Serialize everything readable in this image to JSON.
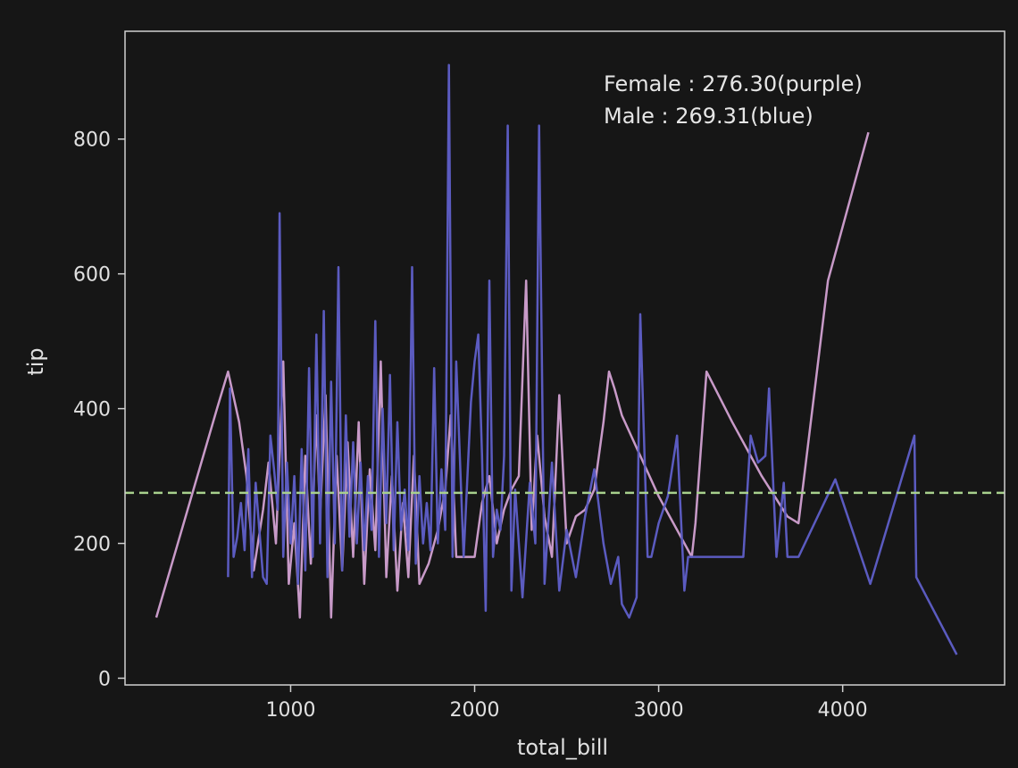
{
  "chart_data": {
    "type": "line",
    "title": "",
    "xlabel": "total_bill",
    "ylabel": "tip",
    "xlim": [
      100,
      4880
    ],
    "ylim": [
      -10,
      960
    ],
    "x_ticks": [
      1000,
      2000,
      3000,
      4000
    ],
    "y_ticks": [
      0,
      200,
      400,
      600,
      800
    ],
    "grid": false,
    "background": "#161616",
    "axes_color": "#d0d0d0",
    "annotations": [
      "Female : 276.30(purple)",
      "Male : 269.31(blue)"
    ],
    "hline": {
      "y": 275,
      "color": "#a8d08d",
      "style": "dashed"
    },
    "series": [
      {
        "color": "#c89ac8",
        "x": [
          270,
          600,
          660,
          720,
          760,
          800,
          850,
          880,
          920,
          960,
          990,
          1020,
          1050,
          1080,
          1110,
          1140,
          1160,
          1190,
          1220,
          1250,
          1280,
          1310,
          1340,
          1370,
          1400,
          1430,
          1460,
          1490,
          1520,
          1550,
          1580,
          1610,
          1640,
          1670,
          1700,
          1750,
          1800,
          1840,
          1870,
          1900,
          1950,
          2000,
          2040,
          2080,
          2120,
          2160,
          2200,
          2240,
          2280,
          2310,
          2340,
          2380,
          2420,
          2460,
          2500,
          2550,
          2600,
          2650,
          2700,
          2730,
          2760,
          2800,
          2900,
          3000,
          3100,
          3180,
          3200,
          3260,
          3400,
          3560,
          3700,
          3760,
          3920,
          4140
        ],
        "y": [
          90,
          400,
          455,
          380,
          300,
          160,
          250,
          320,
          200,
          470,
          140,
          230,
          90,
          330,
          170,
          390,
          240,
          420,
          90,
          330,
          160,
          350,
          180,
          380,
          140,
          310,
          190,
          470,
          150,
          300,
          130,
          260,
          150,
          330,
          140,
          170,
          220,
          280,
          390,
          180,
          180,
          180,
          260,
          300,
          200,
          250,
          280,
          300,
          590,
          220,
          360,
          240,
          180,
          420,
          200,
          240,
          250,
          280,
          380,
          455,
          430,
          390,
          330,
          270,
          220,
          180,
          230,
          455,
          380,
          300,
          240,
          230,
          590,
          810
        ]
      },
      {
        "color": "#5b5bc0",
        "x": [
          660,
          670,
          690,
          710,
          730,
          750,
          770,
          790,
          810,
          850,
          870,
          890,
          910,
          930,
          940,
          960,
          980,
          1000,
          1020,
          1040,
          1060,
          1080,
          1100,
          1120,
          1140,
          1160,
          1180,
          1200,
          1220,
          1240,
          1260,
          1280,
          1300,
          1320,
          1340,
          1360,
          1380,
          1400,
          1420,
          1440,
          1460,
          1480,
          1500,
          1520,
          1540,
          1560,
          1580,
          1600,
          1620,
          1640,
          1660,
          1680,
          1700,
          1720,
          1740,
          1760,
          1780,
          1800,
          1820,
          1840,
          1860,
          1880,
          1900,
          1940,
          1980,
          2000,
          2020,
          2040,
          2060,
          2080,
          2100,
          2120,
          2140,
          2160,
          2180,
          2200,
          2220,
          2260,
          2300,
          2330,
          2350,
          2380,
          2420,
          2460,
          2500,
          2550,
          2600,
          2650,
          2700,
          2740,
          2780,
          2800,
          2840,
          2880,
          2900,
          2940,
          2960,
          3000,
          3050,
          3100,
          3140,
          3160,
          3200,
          3300,
          3460,
          3500,
          3540,
          3580,
          3600,
          3640,
          3680,
          3700,
          3760,
          3960,
          4150,
          4390,
          4400,
          4620
        ],
        "y": [
          150,
          430,
          180,
          210,
          260,
          190,
          340,
          150,
          290,
          150,
          140,
          360,
          310,
          250,
          690,
          180,
          320,
          200,
          300,
          140,
          340,
          160,
          460,
          180,
          510,
          200,
          545,
          150,
          440,
          200,
          610,
          160,
          390,
          210,
          350,
          200,
          320,
          190,
          300,
          220,
          530,
          180,
          400,
          230,
          450,
          190,
          380,
          220,
          280,
          190,
          610,
          170,
          300,
          200,
          260,
          190,
          460,
          200,
          310,
          220,
          910,
          180,
          470,
          180,
          410,
          470,
          510,
          330,
          100,
          590,
          180,
          250,
          220,
          330,
          820,
          130,
          280,
          120,
          290,
          200,
          820,
          140,
          320,
          130,
          220,
          150,
          240,
          310,
          200,
          140,
          180,
          110,
          90,
          120,
          540,
          180,
          180,
          230,
          270,
          360,
          130,
          180,
          180,
          180,
          180,
          360,
          320,
          330,
          430,
          180,
          290,
          180,
          180,
          295,
          140,
          360,
          150,
          35
        ]
      }
    ]
  }
}
